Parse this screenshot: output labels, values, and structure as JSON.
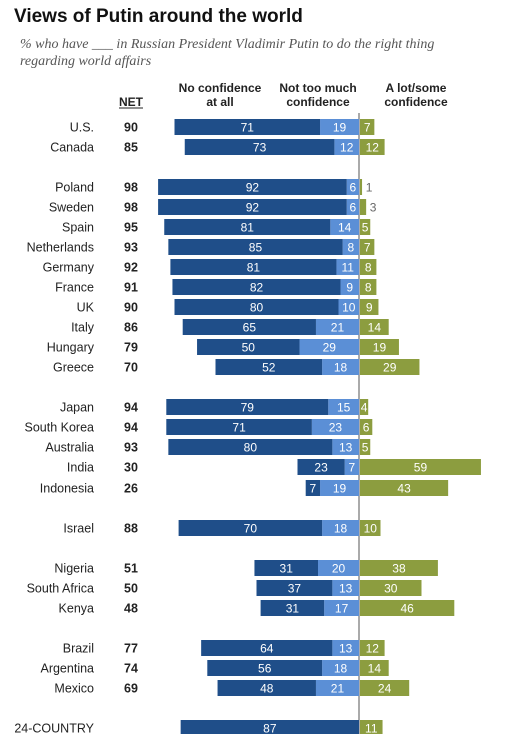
{
  "title": "Views of Putin around the world",
  "subtitle": "% who have ___ in Russian President Vladimir Putin to do the right thing regarding world affairs",
  "chart_data": {
    "type": "bar",
    "headers": {
      "net": "NET",
      "no_confidence": [
        "No confidence",
        "at all"
      ],
      "not_too_much": [
        "Not too much",
        "confidence"
      ],
      "a_lot_some": [
        "A lot/some",
        "confidence"
      ]
    },
    "colors": {
      "no_confidence": "#1f4e89",
      "not_too_much": "#5b8fd6",
      "a_lot_some": "#8c9d3f"
    },
    "rows": [
      {
        "country": "U.S.",
        "net": "90",
        "none": 71,
        "notmuch": 19,
        "alot": 7
      },
      {
        "country": "Canada",
        "net": "85",
        "none": 73,
        "notmuch": 12,
        "alot": 12
      },
      {
        "country": "Poland",
        "net": "98",
        "none": 92,
        "notmuch": 6,
        "alot": 1
      },
      {
        "country": "Sweden",
        "net": "98",
        "none": 92,
        "notmuch": 6,
        "alot": 3
      },
      {
        "country": "Spain",
        "net": "95",
        "none": 81,
        "notmuch": 14,
        "alot": 5
      },
      {
        "country": "Netherlands",
        "net": "93",
        "none": 85,
        "notmuch": 8,
        "alot": 7
      },
      {
        "country": "Germany",
        "net": "92",
        "none": 81,
        "notmuch": 11,
        "alot": 8
      },
      {
        "country": "France",
        "net": "91",
        "none": 82,
        "notmuch": 9,
        "alot": 8
      },
      {
        "country": "UK",
        "net": "90",
        "none": 80,
        "notmuch": 10,
        "alot": 9
      },
      {
        "country": "Italy",
        "net": "86",
        "none": 65,
        "notmuch": 21,
        "alot": 14
      },
      {
        "country": "Hungary",
        "net": "79",
        "none": 50,
        "notmuch": 29,
        "alot": 19
      },
      {
        "country": "Greece",
        "net": "70",
        "none": 52,
        "notmuch": 18,
        "alot": 29
      },
      {
        "country": "Japan",
        "net": "94",
        "none": 79,
        "notmuch": 15,
        "alot": 4
      },
      {
        "country": "South Korea",
        "net": "94",
        "none": 71,
        "notmuch": 23,
        "alot": 6
      },
      {
        "country": "Australia",
        "net": "93",
        "none": 80,
        "notmuch": 13,
        "alot": 5
      },
      {
        "country": "India",
        "net": "30",
        "none": 23,
        "notmuch": 7,
        "alot": 59
      },
      {
        "country": "Indonesia",
        "net": "26",
        "none": 7,
        "notmuch": 19,
        "alot": 43
      },
      {
        "country": "Israel",
        "net": "88",
        "none": 70,
        "notmuch": 18,
        "alot": 10
      },
      {
        "country": "Nigeria",
        "net": "51",
        "none": 31,
        "notmuch": 20,
        "alot": 38
      },
      {
        "country": "South Africa",
        "net": "50",
        "none": 37,
        "notmuch": 13,
        "alot": 30
      },
      {
        "country": "Kenya",
        "net": "48",
        "none": 31,
        "notmuch": 17,
        "alot": 46
      },
      {
        "country": "Brazil",
        "net": "77",
        "none": 64,
        "notmuch": 13,
        "alot": 12
      },
      {
        "country": "Argentina",
        "net": "74",
        "none": 56,
        "notmuch": 18,
        "alot": 14
      },
      {
        "country": "Mexico",
        "net": "69",
        "none": 48,
        "notmuch": 21,
        "alot": 24
      },
      {
        "country": "24-COUNTRY",
        "net": "",
        "none": 87,
        "notmuch": "",
        "alot": 11
      }
    ]
  }
}
